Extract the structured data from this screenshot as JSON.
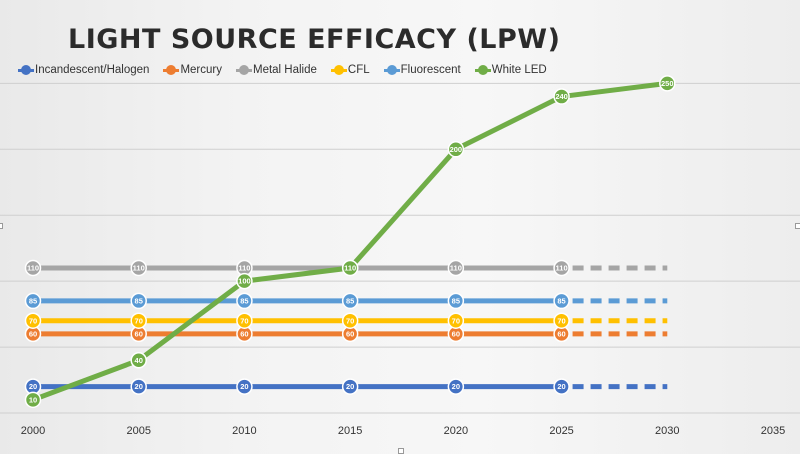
{
  "chart_data": {
    "type": "line",
    "title": "LIGHT SOURCE EFFICACY (LPW)",
    "xlabel": "",
    "ylabel": "",
    "x_ticks": [
      "2000",
      "2005",
      "2010",
      "2015",
      "2020",
      "2025",
      "2030",
      "2035"
    ],
    "xlim": [
      2000,
      2035
    ],
    "ylim": [
      0,
      270
    ],
    "grid": true,
    "legend_position": "top",
    "series": [
      {
        "name": "Incandescent/Halogen",
        "color": "#4472c4",
        "points": [
          [
            2000,
            20
          ],
          [
            2005,
            20
          ],
          [
            2010,
            20
          ],
          [
            2015,
            20
          ],
          [
            2020,
            20
          ],
          [
            2025,
            20
          ]
        ],
        "labels": [
          "20",
          "20",
          "20",
          "20",
          "20",
          "20"
        ],
        "projection": [
          [
            2025,
            20
          ],
          [
            2030,
            20
          ]
        ]
      },
      {
        "name": "Mercury",
        "color": "#ed7d31",
        "points": [
          [
            2000,
            60
          ],
          [
            2005,
            60
          ],
          [
            2010,
            60
          ],
          [
            2015,
            60
          ],
          [
            2020,
            60
          ],
          [
            2025,
            60
          ]
        ],
        "labels": [
          "60",
          "60",
          "60",
          "60",
          "60",
          "60"
        ],
        "projection": [
          [
            2025,
            60
          ],
          [
            2030,
            60
          ]
        ]
      },
      {
        "name": "Metal Halide",
        "color": "#a5a5a5",
        "points": [
          [
            2000,
            110
          ],
          [
            2005,
            110
          ],
          [
            2010,
            110
          ],
          [
            2015,
            110
          ],
          [
            2020,
            110
          ],
          [
            2025,
            110
          ]
        ],
        "labels": [
          "110",
          "110",
          "110",
          "110",
          "110",
          "110"
        ],
        "projection": [
          [
            2025,
            110
          ],
          [
            2030,
            110
          ]
        ]
      },
      {
        "name": "CFL",
        "color": "#ffc000",
        "points": [
          [
            2000,
            70
          ],
          [
            2005,
            70
          ],
          [
            2010,
            70
          ],
          [
            2015,
            70
          ],
          [
            2020,
            70
          ],
          [
            2025,
            70
          ]
        ],
        "labels": [
          "70",
          "70",
          "70",
          "70",
          "70",
          "70"
        ],
        "projection": [
          [
            2025,
            70
          ],
          [
            2030,
            70
          ]
        ]
      },
      {
        "name": "Fluorescent",
        "color": "#5b9bd5",
        "points": [
          [
            2000,
            85
          ],
          [
            2005,
            85
          ],
          [
            2010,
            85
          ],
          [
            2015,
            85
          ],
          [
            2020,
            85
          ],
          [
            2025,
            85
          ]
        ],
        "labels": [
          "85",
          "85",
          "85",
          "85",
          "85",
          "85"
        ],
        "projection": [
          [
            2025,
            85
          ],
          [
            2030,
            85
          ]
        ]
      },
      {
        "name": "White LED",
        "color": "#70ad47",
        "points": [
          [
            2000,
            10
          ],
          [
            2005,
            40
          ],
          [
            2010,
            100
          ],
          [
            2015,
            110
          ],
          [
            2020,
            200
          ],
          [
            2025,
            240
          ],
          [
            2030,
            250
          ]
        ],
        "labels": [
          "10",
          "40",
          "100",
          "110",
          "200",
          "240",
          "250"
        ],
        "projection": []
      }
    ]
  }
}
